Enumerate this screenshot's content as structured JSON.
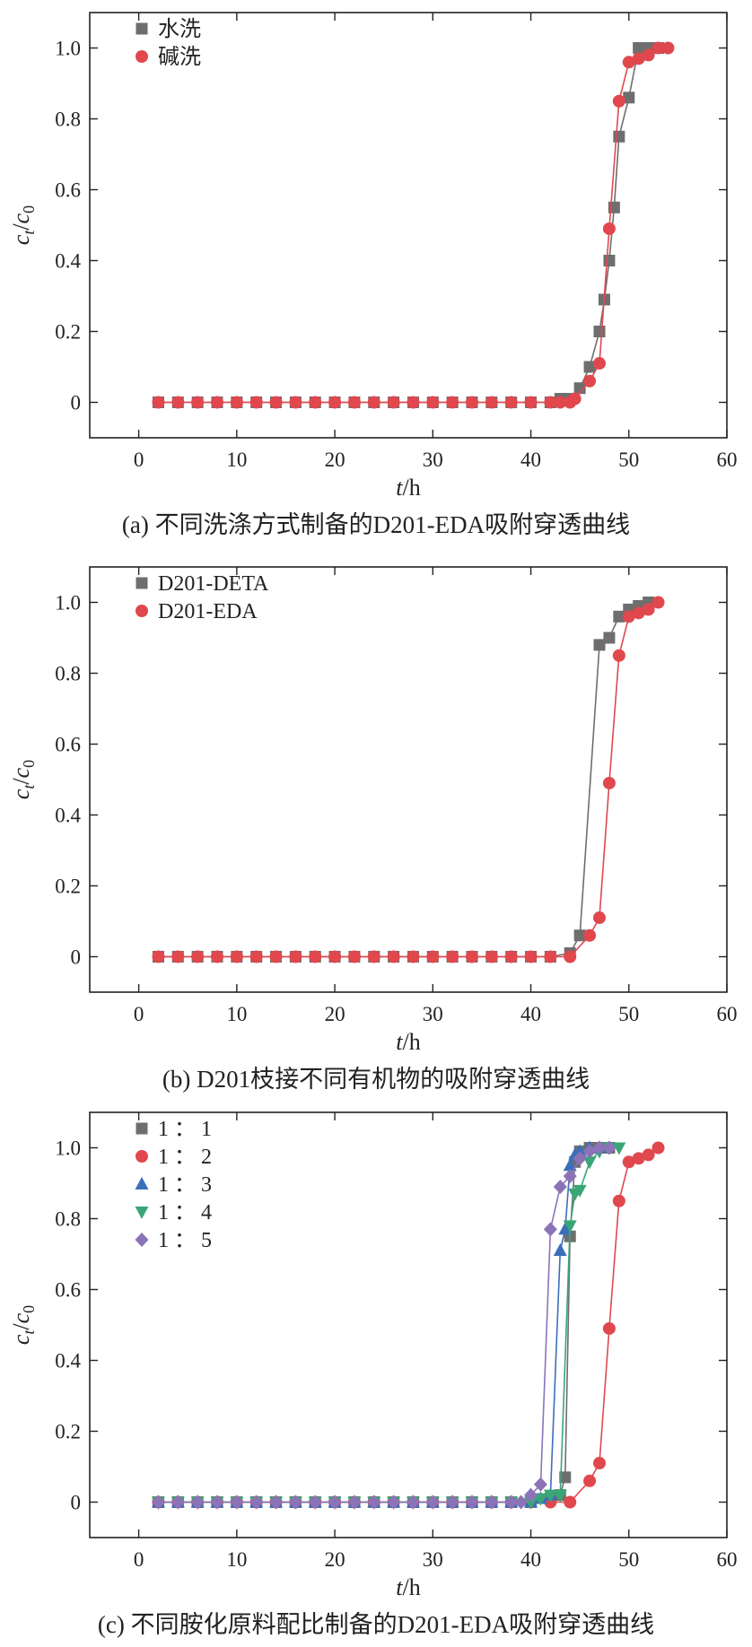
{
  "chart_data": [
    {
      "type": "line",
      "caption": "(a) 不同洗涤方式制备的D201-EDA吸附穿透曲线",
      "xlabel": "t/h",
      "ylabel": "ct/c0",
      "xlim": [
        -5,
        60
      ],
      "ylim": [
        -0.1,
        1.1
      ],
      "xticks": [
        0,
        10,
        20,
        30,
        40,
        50,
        60
      ],
      "yticks": [
        0,
        0.2,
        0.4,
        0.6,
        0.8,
        1.0
      ],
      "ytick_labels": [
        "0",
        "0.2",
        "0.4",
        "0.6",
        "0.8",
        "1.0"
      ],
      "legend_position": "top-left",
      "series": [
        {
          "name": "水洗",
          "color": "#6e6e6e",
          "marker": "square",
          "x": [
            2,
            4,
            6,
            8,
            10,
            12,
            14,
            16,
            18,
            20,
            22,
            24,
            26,
            28,
            30,
            32,
            34,
            36,
            38,
            40,
            42,
            43,
            44,
            45,
            46,
            47,
            47.5,
            48,
            48.5,
            49,
            50,
            51,
            52,
            53
          ],
          "y": [
            0,
            0,
            0,
            0,
            0,
            0,
            0,
            0,
            0,
            0,
            0,
            0,
            0,
            0,
            0,
            0,
            0,
            0,
            0,
            0,
            0,
            0.01,
            0.01,
            0.04,
            0.1,
            0.2,
            0.29,
            0.4,
            0.55,
            0.75,
            0.86,
            1.0,
            1.0,
            1.0
          ]
        },
        {
          "name": "碱洗",
          "color": "#e0484e",
          "marker": "circle",
          "x": [
            2,
            4,
            6,
            8,
            10,
            12,
            14,
            16,
            18,
            20,
            22,
            24,
            26,
            28,
            30,
            32,
            34,
            36,
            38,
            40,
            42,
            43,
            44,
            44.5,
            46,
            47,
            48,
            49,
            50,
            51,
            52,
            53,
            54
          ],
          "y": [
            0,
            0,
            0,
            0,
            0,
            0,
            0,
            0,
            0,
            0,
            0,
            0,
            0,
            0,
            0,
            0,
            0,
            0,
            0,
            0,
            0,
            0,
            0,
            0.01,
            0.06,
            0.11,
            0.49,
            0.85,
            0.96,
            0.97,
            0.98,
            1.0,
            1.0
          ]
        }
      ]
    },
    {
      "type": "line",
      "caption": "(b) D201枝接不同有机物的吸附穿透曲线",
      "xlabel": "t/h",
      "ylabel": "ct/c0",
      "xlim": [
        -5,
        60
      ],
      "ylim": [
        -0.1,
        1.1
      ],
      "xticks": [
        0,
        10,
        20,
        30,
        40,
        50,
        60
      ],
      "yticks": [
        0,
        0.2,
        0.4,
        0.6,
        0.8,
        1.0
      ],
      "ytick_labels": [
        "0",
        "0.2",
        "0.4",
        "0.6",
        "0.8",
        "1.0"
      ],
      "legend_position": "top-left",
      "series": [
        {
          "name": "D201-DETA",
          "color": "#6e6e6e",
          "marker": "square",
          "x": [
            2,
            4,
            6,
            8,
            10,
            12,
            14,
            16,
            18,
            20,
            22,
            24,
            26,
            28,
            30,
            32,
            34,
            36,
            38,
            40,
            42,
            44,
            45,
            47,
            48,
            49,
            50,
            51,
            52
          ],
          "y": [
            0,
            0,
            0,
            0,
            0,
            0,
            0,
            0,
            0,
            0,
            0,
            0,
            0,
            0,
            0,
            0,
            0,
            0,
            0,
            0,
            0,
            0.01,
            0.06,
            0.88,
            0.9,
            0.96,
            0.98,
            0.99,
            1.0
          ]
        },
        {
          "name": "D201-EDA",
          "color": "#e0484e",
          "marker": "circle",
          "x": [
            2,
            4,
            6,
            8,
            10,
            12,
            14,
            16,
            18,
            20,
            22,
            24,
            26,
            28,
            30,
            32,
            34,
            36,
            38,
            40,
            42,
            44,
            46,
            47,
            48,
            49,
            50,
            51,
            52,
            53
          ],
          "y": [
            0,
            0,
            0,
            0,
            0,
            0,
            0,
            0,
            0,
            0,
            0,
            0,
            0,
            0,
            0,
            0,
            0,
            0,
            0,
            0,
            0,
            0,
            0.06,
            0.11,
            0.49,
            0.85,
            0.96,
            0.97,
            0.98,
            1.0
          ]
        }
      ]
    },
    {
      "type": "line",
      "caption": "(c) 不同胺化原料配比制备的D201-EDA吸附穿透曲线",
      "xlabel": "t/h",
      "ylabel": "ct/c0",
      "xlim": [
        -5,
        60
      ],
      "ylim": [
        -0.1,
        1.1
      ],
      "xticks": [
        0,
        10,
        20,
        30,
        40,
        50,
        60
      ],
      "yticks": [
        0,
        0.2,
        0.4,
        0.6,
        0.8,
        1.0
      ],
      "ytick_labels": [
        "0",
        "0.2",
        "0.4",
        "0.6",
        "0.8",
        "1.0"
      ],
      "legend_position": "top-left",
      "series": [
        {
          "name": "1 ： 1",
          "color": "#6e6e6e",
          "marker": "square",
          "x": [
            2,
            4,
            6,
            8,
            10,
            12,
            14,
            16,
            18,
            20,
            22,
            24,
            26,
            28,
            30,
            32,
            34,
            36,
            38,
            40,
            42,
            43,
            43.5,
            44,
            44.5,
            45,
            46,
            47,
            48
          ],
          "y": [
            0,
            0,
            0,
            0,
            0,
            0,
            0,
            0,
            0,
            0,
            0,
            0,
            0,
            0,
            0,
            0,
            0,
            0,
            0,
            0,
            0.01,
            0.02,
            0.07,
            0.75,
            0.96,
            0.99,
            1.0,
            1.0,
            1.0
          ]
        },
        {
          "name": "1 ： 2",
          "color": "#e0484e",
          "marker": "circle",
          "x": [
            2,
            4,
            6,
            8,
            10,
            12,
            14,
            16,
            18,
            20,
            22,
            24,
            26,
            28,
            30,
            32,
            34,
            36,
            38,
            40,
            42,
            44,
            46,
            47,
            48,
            49,
            50,
            51,
            52,
            53
          ],
          "y": [
            0,
            0,
            0,
            0,
            0,
            0,
            0,
            0,
            0,
            0,
            0,
            0,
            0,
            0,
            0,
            0,
            0,
            0,
            0,
            0,
            0,
            0,
            0.06,
            0.11,
            0.49,
            0.85,
            0.96,
            0.97,
            0.98,
            1.0
          ]
        },
        {
          "name": "1 ： 3",
          "color": "#3b6fba",
          "marker": "triangle-up",
          "x": [
            2,
            4,
            6,
            8,
            10,
            12,
            14,
            16,
            18,
            20,
            22,
            24,
            26,
            28,
            30,
            32,
            34,
            36,
            38,
            40,
            41,
            42,
            43,
            43.5,
            44,
            44.5,
            45,
            46,
            47
          ],
          "y": [
            0,
            0,
            0,
            0,
            0,
            0,
            0,
            0,
            0,
            0,
            0,
            0,
            0,
            0,
            0,
            0,
            0,
            0,
            0,
            0,
            0.01,
            0.02,
            0.71,
            0.77,
            0.95,
            0.98,
            0.99,
            1.0,
            1.0
          ]
        },
        {
          "name": "1 ： 4",
          "color": "#3aa676",
          "marker": "triangle-down",
          "x": [
            2,
            4,
            6,
            8,
            10,
            12,
            14,
            16,
            18,
            20,
            22,
            24,
            26,
            28,
            30,
            32,
            34,
            36,
            38,
            40,
            41,
            42,
            43,
            44,
            44.5,
            45,
            46,
            47,
            48,
            49
          ],
          "y": [
            0,
            0,
            0,
            0,
            0,
            0,
            0,
            0,
            0,
            0,
            0,
            0,
            0,
            0,
            0,
            0,
            0,
            0,
            0,
            0,
            0.01,
            0.02,
            0.02,
            0.78,
            0.87,
            0.88,
            0.96,
            0.99,
            1.0,
            1.0
          ]
        },
        {
          "name": "1 ： 5",
          "color": "#8c73b8",
          "marker": "diamond",
          "x": [
            2,
            4,
            6,
            8,
            10,
            12,
            14,
            16,
            18,
            20,
            22,
            24,
            26,
            28,
            30,
            32,
            34,
            36,
            38,
            39,
            40,
            41,
            42,
            43,
            44,
            45,
            46,
            47,
            48
          ],
          "y": [
            0,
            0,
            0,
            0,
            0,
            0,
            0,
            0,
            0,
            0,
            0,
            0,
            0,
            0,
            0,
            0,
            0,
            0,
            0,
            0,
            0.02,
            0.05,
            0.77,
            0.89,
            0.92,
            0.97,
            0.99,
            1.0,
            1.0
          ]
        }
      ]
    }
  ]
}
